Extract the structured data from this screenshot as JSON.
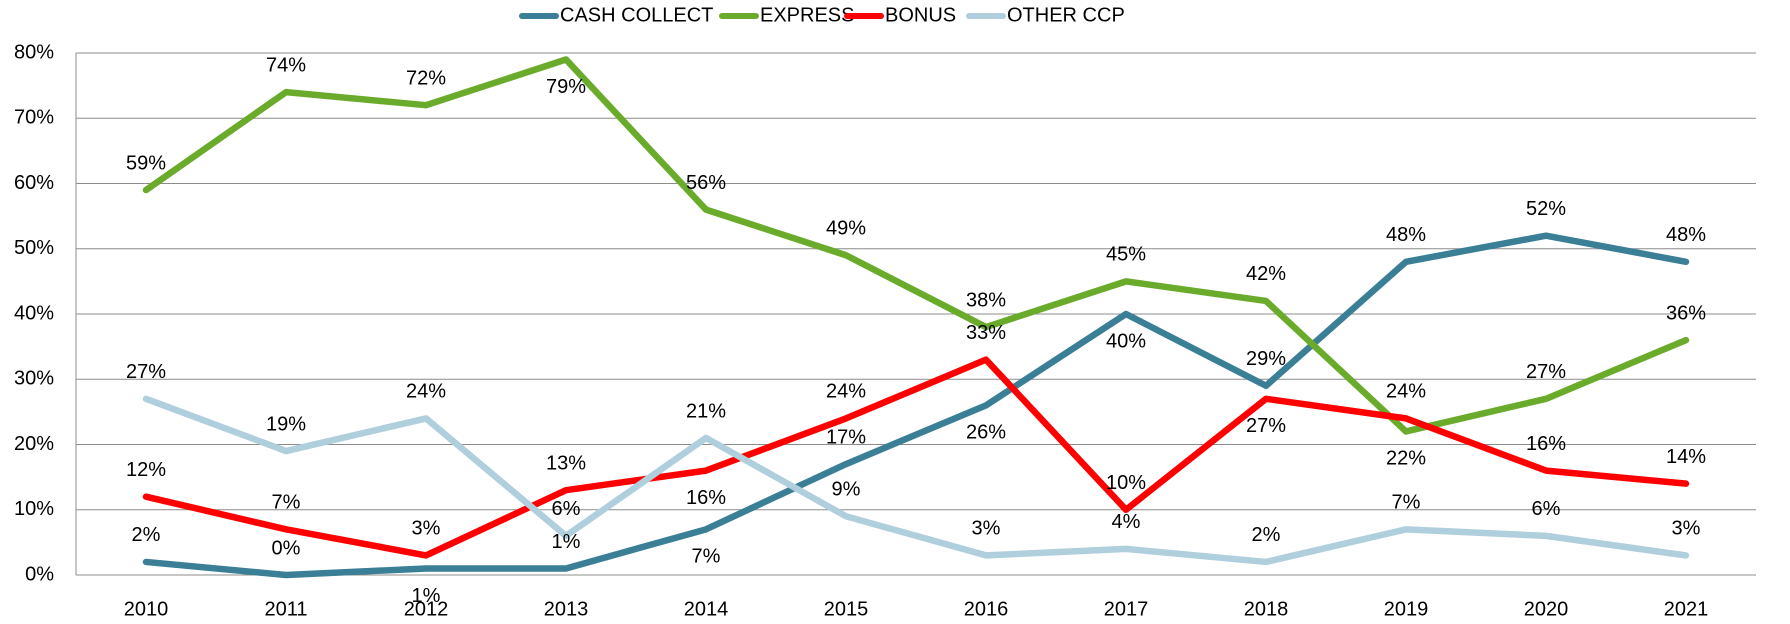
{
  "chart_data": {
    "type": "line",
    "categories": [
      "2010",
      "2011",
      "2012",
      "2013",
      "2014",
      "2015",
      "2016",
      "2017",
      "2018",
      "2019",
      "2020",
      "2021"
    ],
    "series": [
      {
        "name": "CASH COLLECT",
        "color": "#3b7f96",
        "values": [
          2,
          0,
          1,
          1,
          7,
          17,
          26,
          40,
          29,
          48,
          52,
          48
        ],
        "value_labels": [
          "2%",
          "0%",
          "1%",
          "1%",
          "7%",
          "17%",
          "26%",
          "40%",
          "29%",
          "48%",
          "52%",
          "48%"
        ]
      },
      {
        "name": "EXPRESS",
        "color": "#6aab2b",
        "values": [
          59,
          74,
          72,
          79,
          56,
          49,
          38,
          45,
          42,
          22,
          27,
          36
        ],
        "value_labels": [
          "59%",
          "74%",
          "72%",
          "79%",
          "56%",
          "49%",
          "38%",
          "45%",
          "42%",
          "22%",
          "27%",
          "36%"
        ]
      },
      {
        "name": "BONUS",
        "color": "#ff0000",
        "values": [
          12,
          7,
          3,
          13,
          16,
          24,
          33,
          10,
          27,
          24,
          16,
          14
        ],
        "value_labels": [
          "12%",
          "7%",
          "3%",
          "13%",
          "16%",
          "24%",
          "33%",
          "10%",
          "27%",
          "24%",
          "16%",
          "14%"
        ]
      },
      {
        "name": "OTHER CCP",
        "color": "#afcfdc",
        "values": [
          27,
          19,
          24,
          6,
          21,
          9,
          3,
          4,
          2,
          7,
          6,
          3
        ],
        "value_labels": [
          "27%",
          "19%",
          "24%",
          "6%",
          "21%",
          "9%",
          "3%",
          "4%",
          "2%",
          "7%",
          "6%",
          "3%"
        ]
      }
    ],
    "ylim": [
      0,
      80
    ],
    "yticks": [
      {
        "value": 0,
        "label": "0%"
      },
      {
        "value": 10,
        "label": "10%"
      },
      {
        "value": 20,
        "label": "20%"
      },
      {
        "value": 30,
        "label": "30%"
      },
      {
        "value": 40,
        "label": "40%"
      },
      {
        "value": 50,
        "label": "50%"
      },
      {
        "value": 60,
        "label": "60%"
      },
      {
        "value": 70,
        "label": "70%"
      },
      {
        "value": 80,
        "label": "80%"
      }
    ],
    "grid": true,
    "legend": "top"
  }
}
